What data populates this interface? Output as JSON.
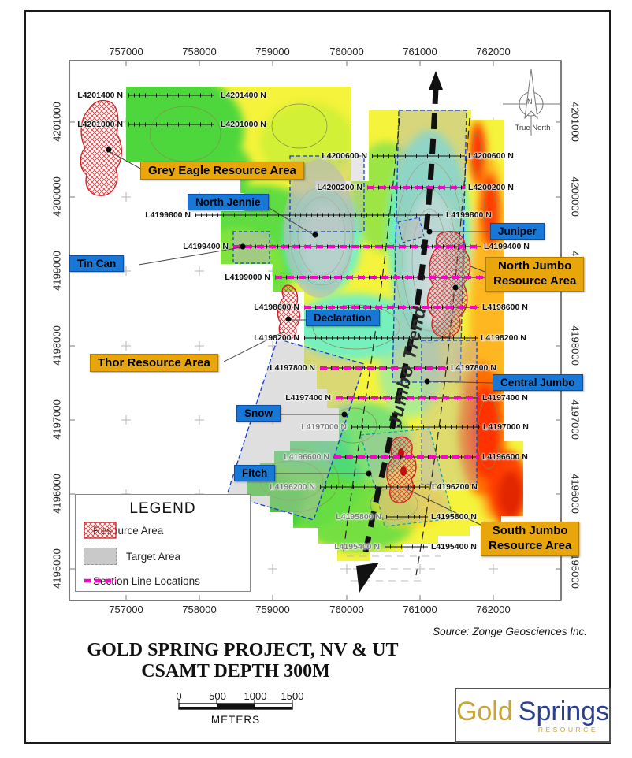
{
  "map": {
    "x_axis": [
      "757000",
      "758000",
      "759000",
      "760000",
      "761000",
      "762000"
    ],
    "y_axis": [
      "4201000",
      "4200000",
      "4199000",
      "4198000",
      "4197000",
      "4196000",
      "4195000"
    ],
    "survey_lines": [
      {
        "label": "L4201400 N",
        "section": false
      },
      {
        "label": "L4201000 N",
        "section": false
      },
      {
        "label": "L4200600 N",
        "section": false
      },
      {
        "label": "L4200200 N",
        "section": true
      },
      {
        "label": "L4199800 N",
        "section": false
      },
      {
        "label": "L4199400 N",
        "section": true
      },
      {
        "label": "L4199000 N",
        "section": true
      },
      {
        "label": "L4198600 N",
        "section": true
      },
      {
        "label": "L4198200 N",
        "section": false
      },
      {
        "label": "L4197800 N",
        "section": true
      },
      {
        "label": "L4197400 N",
        "section": true
      },
      {
        "label": "L4197000 N",
        "section": false
      },
      {
        "label": "L4196600 N",
        "section": true
      },
      {
        "label": "L4196200 N",
        "section": false
      },
      {
        "label": "L4195800 N",
        "section": false
      },
      {
        "label": "L4195400 N",
        "section": false
      }
    ],
    "targets": [
      {
        "label": "North Jennie"
      },
      {
        "label": "Juniper"
      },
      {
        "label": "Tin Can"
      },
      {
        "label": "Declaration"
      },
      {
        "label": "Central Jumbo"
      },
      {
        "label": "Snow"
      },
      {
        "label": "Fitch"
      }
    ],
    "resources": [
      {
        "label": "Grey Eagle Resource Area"
      },
      {
        "label": "Thor Resource Area"
      },
      {
        "line1": "North Jumbo",
        "line2": "Resource Area"
      },
      {
        "line1": "South Jumbo",
        "line2": "Resource Area"
      }
    ],
    "trend_label": "Jumbo Trend",
    "north": {
      "letter": "N",
      "label": "True North"
    }
  },
  "legend": {
    "title": "LEGEND",
    "items": [
      {
        "label": "Resource Area",
        "type": "resource"
      },
      {
        "label": "Target Area",
        "type": "target"
      },
      {
        "label": "Section Line Locations",
        "type": "section"
      }
    ]
  },
  "footer": {
    "source": "Source: Zonge Geosciences Inc.",
    "title1": "GOLD SPRING PROJECT, NV & UT",
    "title2": "CSAMT DEPTH 300M",
    "scale": {
      "ticks": [
        "0",
        "500",
        "1000",
        "1500"
      ],
      "unit": "METERS"
    }
  },
  "logo": {
    "word1": "Gold",
    "word2": "Springs",
    "tag": "RESOURCE"
  },
  "colors": {
    "section_line": "#ff00cc",
    "target_outline": "#1340c8",
    "resource_outline": "#d02020",
    "blue_callout": "#1878d8",
    "orange_callout": "#e9a60b",
    "high_resistivity": "#ff2d00",
    "low_resistivity": "#5fefd5"
  }
}
